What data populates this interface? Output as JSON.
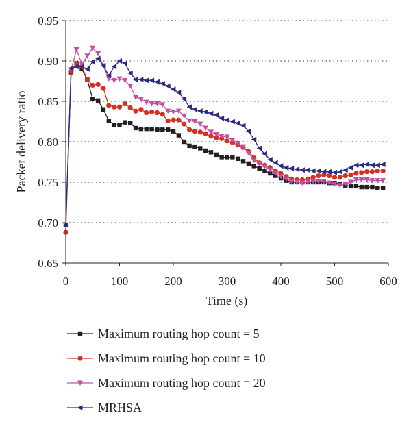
{
  "chart_data": {
    "type": "line",
    "title": "",
    "xlabel": "Time (s)",
    "ylabel": "Packet delivery ratio",
    "xlim": [
      0,
      600
    ],
    "ylim": [
      0.65,
      0.95
    ],
    "x_ticks": [
      "0",
      "100",
      "200",
      "300",
      "400",
      "500",
      "600"
    ],
    "y_ticks": [
      "0.65",
      "0.70",
      "0.75",
      "0.80",
      "0.85",
      "0.90",
      "0.95"
    ],
    "grid": "horizontal-dotted",
    "legend_position": "bottom",
    "x": [
      0,
      10,
      20,
      30,
      40,
      50,
      60,
      70,
      80,
      90,
      100,
      110,
      120,
      130,
      140,
      150,
      160,
      170,
      180,
      190,
      200,
      210,
      220,
      230,
      240,
      250,
      260,
      270,
      280,
      290,
      300,
      310,
      320,
      330,
      340,
      350,
      360,
      370,
      380,
      390,
      400,
      410,
      420,
      430,
      440,
      450,
      460,
      470,
      480,
      490,
      500,
      510,
      520,
      530,
      540,
      550,
      560,
      570,
      580,
      590
    ],
    "series": [
      {
        "name": "Maximum routing hop count = 5",
        "color": "#231f20",
        "marker": "square",
        "values": [
          0.697,
          0.886,
          0.897,
          0.89,
          0.877,
          0.853,
          0.851,
          0.84,
          0.826,
          0.821,
          0.821,
          0.824,
          0.823,
          0.817,
          0.816,
          0.816,
          0.816,
          0.815,
          0.815,
          0.815,
          0.813,
          0.808,
          0.8,
          0.795,
          0.794,
          0.792,
          0.789,
          0.787,
          0.784,
          0.781,
          0.781,
          0.781,
          0.779,
          0.776,
          0.773,
          0.77,
          0.767,
          0.764,
          0.761,
          0.758,
          0.755,
          0.752,
          0.75,
          0.75,
          0.75,
          0.75,
          0.75,
          0.75,
          0.75,
          0.749,
          0.749,
          0.748,
          0.746,
          0.745,
          0.745,
          0.744,
          0.744,
          0.744,
          0.743,
          0.743
        ]
      },
      {
        "name": "Maximum routing hop count = 10",
        "color": "#d6301f",
        "marker": "circle",
        "values": [
          0.688,
          0.887,
          0.896,
          0.893,
          0.877,
          0.87,
          0.871,
          0.866,
          0.845,
          0.843,
          0.843,
          0.847,
          0.842,
          0.838,
          0.84,
          0.836,
          0.837,
          0.836,
          0.834,
          0.826,
          0.827,
          0.827,
          0.822,
          0.815,
          0.813,
          0.812,
          0.81,
          0.807,
          0.805,
          0.804,
          0.801,
          0.799,
          0.796,
          0.793,
          0.788,
          0.78,
          0.774,
          0.771,
          0.768,
          0.764,
          0.761,
          0.757,
          0.754,
          0.753,
          0.753,
          0.754,
          0.756,
          0.758,
          0.759,
          0.758,
          0.756,
          0.756,
          0.758,
          0.759,
          0.761,
          0.762,
          0.763,
          0.763,
          0.764,
          0.764
        ]
      },
      {
        "name": "Maximum routing hop count = 20",
        "color": "#c24fa5",
        "marker": "triangle-down",
        "values": [
          0.697,
          0.889,
          0.914,
          0.896,
          0.906,
          0.916,
          0.909,
          0.894,
          0.878,
          0.876,
          0.878,
          0.876,
          0.869,
          0.855,
          0.853,
          0.849,
          0.847,
          0.847,
          0.846,
          0.838,
          0.837,
          0.838,
          0.832,
          0.826,
          0.825,
          0.822,
          0.817,
          0.812,
          0.809,
          0.807,
          0.806,
          0.802,
          0.798,
          0.794,
          0.786,
          0.777,
          0.773,
          0.77,
          0.765,
          0.761,
          0.757,
          0.754,
          0.751,
          0.75,
          0.749,
          0.75,
          0.751,
          0.751,
          0.751,
          0.749,
          0.748,
          0.746,
          0.748,
          0.75,
          0.753,
          0.753,
          0.753,
          0.752,
          0.752,
          0.752
        ]
      },
      {
        "name": "MRHSA",
        "color": "#2b2b84",
        "marker": "triangle-left",
        "values": [
          0.697,
          0.891,
          0.893,
          0.893,
          0.89,
          0.899,
          0.903,
          0.894,
          0.882,
          0.893,
          0.9,
          0.897,
          0.885,
          0.877,
          0.877,
          0.876,
          0.876,
          0.874,
          0.872,
          0.869,
          0.865,
          0.861,
          0.853,
          0.843,
          0.84,
          0.838,
          0.837,
          0.835,
          0.833,
          0.829,
          0.827,
          0.825,
          0.823,
          0.82,
          0.813,
          0.803,
          0.792,
          0.785,
          0.778,
          0.774,
          0.77,
          0.768,
          0.767,
          0.766,
          0.765,
          0.765,
          0.764,
          0.764,
          0.763,
          0.763,
          0.762,
          0.763,
          0.765,
          0.768,
          0.771,
          0.771,
          0.772,
          0.771,
          0.771,
          0.772
        ]
      }
    ]
  }
}
